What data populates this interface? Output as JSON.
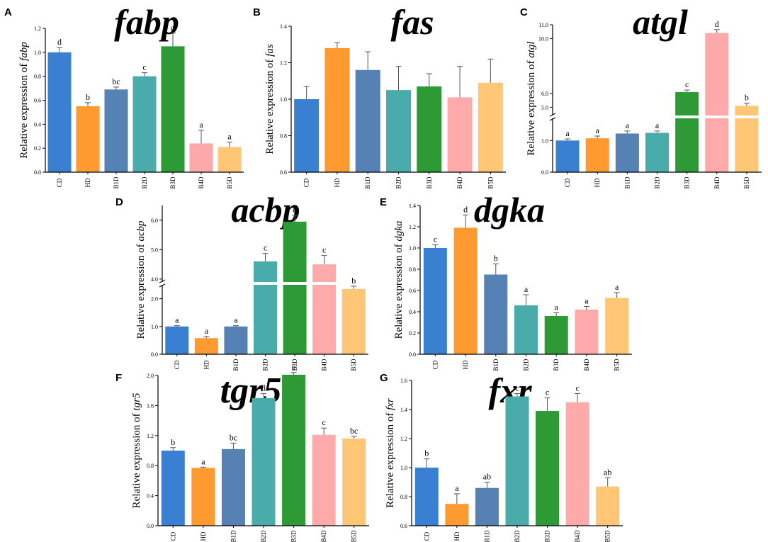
{
  "colors": {
    "CD": "#3a80d2",
    "HD": "#ff9a30",
    "B1D": "#5581b4",
    "B2D": "#4aabab",
    "B3D": "#2e9a35",
    "B4D": "#ffaaaa",
    "B5D": "#ffc676",
    "error": "#555555",
    "axis": "#000000"
  },
  "chart_data": [
    {
      "panel": "A",
      "type": "bar",
      "title": "fabp",
      "ylabel_prefix": "Relative expression of ",
      "ylabel_gene": "fabp",
      "categories": [
        "CD",
        "HD",
        "B1D",
        "B2D",
        "B3D",
        "B4D",
        "B5D"
      ],
      "values": [
        1.0,
        0.55,
        0.69,
        0.8,
        1.05,
        0.24,
        0.21
      ],
      "errors": [
        0.04,
        0.03,
        0.02,
        0.03,
        0.11,
        0.11,
        0.04
      ],
      "significance": [
        "d",
        "b",
        "bc",
        "c",
        "d",
        "a",
        "a"
      ],
      "ylim": [
        0.0,
        1.2
      ],
      "ticks": [
        "0.0",
        "0.2",
        "0.4",
        "0.6",
        "0.8",
        "1.0",
        "1.2"
      ]
    },
    {
      "panel": "B",
      "type": "bar",
      "title": "fas",
      "ylabel_prefix": "Relative expression of ",
      "ylabel_gene": "fas",
      "categories": [
        "CD",
        "HD",
        "B1D",
        "B2D",
        "B3D",
        "B4D",
        "B5D"
      ],
      "values": [
        1.0,
        1.28,
        1.16,
        1.05,
        1.07,
        1.01,
        1.09
      ],
      "errors": [
        0.07,
        0.03,
        0.1,
        0.13,
        0.07,
        0.17,
        0.13
      ],
      "significance": [
        "",
        "",
        "",
        "",
        "",
        "",
        ""
      ],
      "ylim": [
        0.6,
        1.4
      ],
      "ticks": [
        "0.6",
        "0.8",
        "1.0",
        "1.2",
        "1.4"
      ]
    },
    {
      "panel": "C",
      "type": "bar",
      "title": "atgl",
      "ylabel_prefix": "Relative expression of ",
      "ylabel_gene": "atgl",
      "categories": [
        "CD",
        "HD",
        "B1D",
        "B2D",
        "B3D",
        "B4D",
        "B5D"
      ],
      "values": [
        1.0,
        1.07,
        1.22,
        1.24,
        6.1,
        10.4,
        5.1
      ],
      "errors": [
        0.05,
        0.07,
        0.08,
        0.06,
        0.15,
        0.25,
        0.2
      ],
      "significance": [
        "a",
        "a",
        "a",
        "a",
        "c",
        "d",
        "b"
      ],
      "ylim": [
        0.0,
        11.0
      ],
      "ticks": [
        "0.0",
        "1.0",
        "5.0",
        "6.0",
        "10.0",
        "11.0"
      ],
      "broken_axis": true
    },
    {
      "panel": "D",
      "type": "bar",
      "title": "acbp",
      "ylabel_prefix": "Relative expression of ",
      "ylabel_gene": "acbp",
      "categories": [
        "CD",
        "HD",
        "B1D",
        "B2D",
        "B3D",
        "B4D",
        "B5D"
      ],
      "values": [
        1.0,
        0.58,
        1.0,
        4.6,
        5.95,
        4.5,
        2.35
      ],
      "errors": [
        0.03,
        0.06,
        0.03,
        0.27,
        0.22,
        0.3,
        0.1
      ],
      "significance": [
        "a",
        "a",
        "a",
        "c",
        "d",
        "c",
        "b"
      ],
      "ylim": [
        0.0,
        6.5
      ],
      "ticks": [
        "0.0",
        "1.0",
        "2.0",
        "4.0",
        "5.0",
        "6.0"
      ],
      "broken_axis": true
    },
    {
      "panel": "E",
      "type": "bar",
      "title": "dgka",
      "ylabel_prefix": "Relative expression of ",
      "ylabel_gene": "dgka",
      "categories": [
        "CD",
        "HD",
        "B1D",
        "B2D",
        "B3D",
        "B4D",
        "B5D"
      ],
      "values": [
        1.0,
        1.19,
        0.75,
        0.46,
        0.36,
        0.42,
        0.53
      ],
      "errors": [
        0.03,
        0.12,
        0.1,
        0.1,
        0.03,
        0.03,
        0.05
      ],
      "significance": [
        "c",
        "d",
        "b",
        "a",
        "a",
        "a",
        "a"
      ],
      "ylim": [
        0.0,
        1.4
      ],
      "ticks": [
        "0.0",
        "0.2",
        "0.4",
        "0.6",
        "0.8",
        "1.0",
        "1.2",
        "1.4"
      ]
    },
    {
      "panel": "F",
      "type": "bar",
      "title": "tgr5",
      "ylabel_prefix": "Relative expression of ",
      "ylabel_gene": "tgr5",
      "categories": [
        "CD",
        "HD",
        "B1D",
        "B2D",
        "B3D",
        "B4D",
        "B5D"
      ],
      "values": [
        1.0,
        0.77,
        1.02,
        1.7,
        2.01,
        1.21,
        1.16
      ],
      "errors": [
        0.04,
        0.01,
        0.08,
        0.06,
        0.03,
        0.09,
        0.03
      ],
      "significance": [
        "b",
        "a",
        "bc",
        "d",
        "e",
        "c",
        "bc"
      ],
      "ylim": [
        0.0,
        2.0
      ],
      "ticks": [
        "0.0",
        "0.4",
        "0.8",
        "1.2",
        "1.6",
        "2.0"
      ]
    },
    {
      "panel": "G",
      "type": "bar",
      "title": "fxr",
      "ylabel_prefix": "Relative expression of ",
      "ylabel_gene": "fxr",
      "categories": [
        "CD",
        "HD",
        "B1D",
        "B2D",
        "B3D",
        "B4D",
        "B5D"
      ],
      "values": [
        1.0,
        0.75,
        0.86,
        1.49,
        1.39,
        1.45,
        0.87
      ],
      "errors": [
        0.06,
        0.07,
        0.04,
        0.02,
        0.09,
        0.06,
        0.06
      ],
      "significance": [
        "b",
        "a",
        "ab",
        "c",
        "c",
        "c",
        "ab"
      ],
      "ylim": [
        0.6,
        1.6
      ],
      "ticks": [
        "0.6",
        "0.8",
        "1.0",
        "1.2",
        "1.4",
        "1.6"
      ]
    }
  ]
}
